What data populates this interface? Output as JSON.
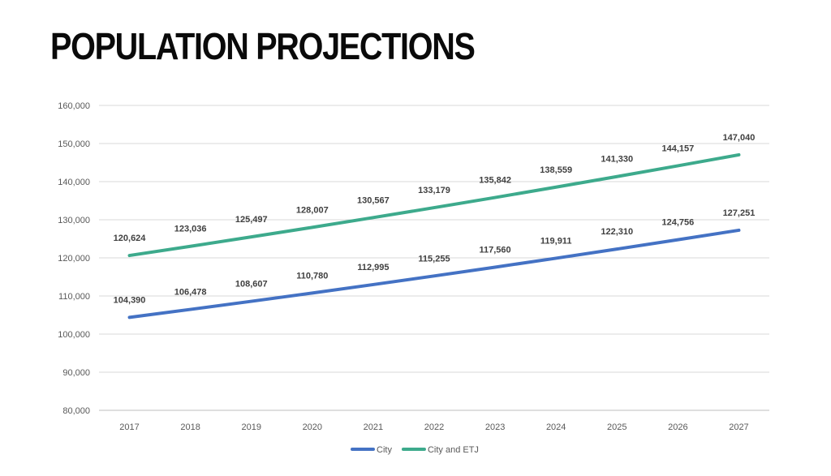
{
  "slide": {
    "title": "POPULATION PROJECTIONS"
  },
  "chart_data": {
    "type": "line",
    "title": "POPULATION PROJECTIONS",
    "xlabel": "",
    "ylabel": "",
    "x": [
      "2017",
      "2018",
      "2019",
      "2020",
      "2021",
      "2022",
      "2023",
      "2024",
      "2025",
      "2026",
      "2027"
    ],
    "ylim": [
      80000,
      160000
    ],
    "ytick_step": 10000,
    "grid": true,
    "legend_position": "bottom",
    "series": [
      {
        "name": "City",
        "color": "#4472C4",
        "values": [
          104390,
          106478,
          108607,
          110780,
          112995,
          115255,
          117560,
          119911,
          122310,
          124756,
          127251
        ],
        "labels": [
          "104,390",
          "106,478",
          "108,607",
          "110,780",
          "112,995",
          "115,255",
          "117,560",
          "119,911",
          "122,310",
          "124,756",
          "127,251"
        ]
      },
      {
        "name": "City and ETJ",
        "color": "#3DAA8C",
        "values": [
          120624,
          123036,
          125497,
          128007,
          130567,
          133179,
          135842,
          138559,
          141330,
          144157,
          147040
        ],
        "labels": [
          "120,624",
          "123,036",
          "125,497",
          "128,007",
          "130,567",
          "133,179",
          "135,842",
          "138,559",
          "141,330",
          "144,157",
          "147,040"
        ]
      }
    ]
  }
}
